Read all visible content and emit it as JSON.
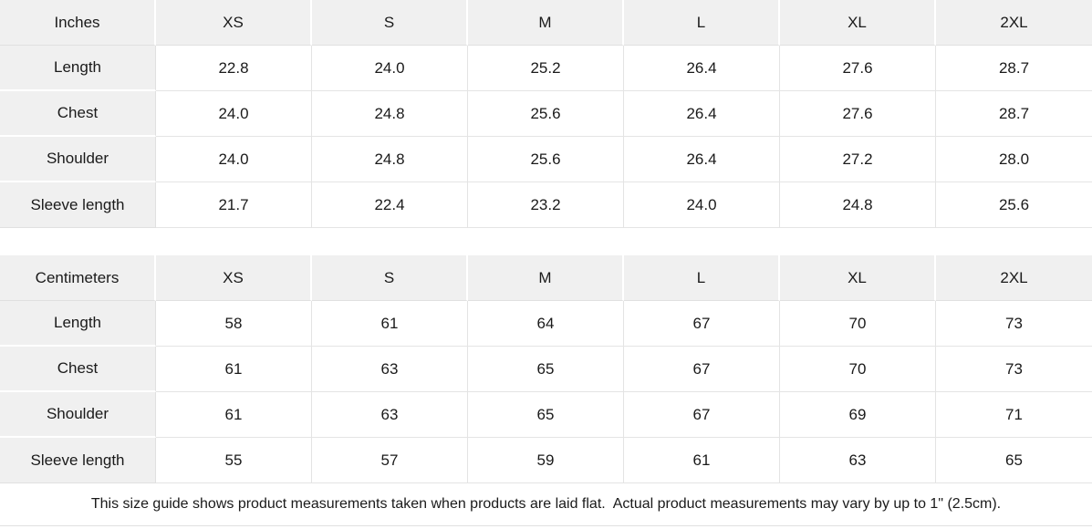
{
  "colors": {
    "cell_gray": "#f0f0f0",
    "grid_line": "#e0e0e0",
    "text": "#1a1a1a"
  },
  "tables": [
    {
      "unit_label": "Inches",
      "size_headers": [
        "XS",
        "S",
        "M",
        "L",
        "XL",
        "2XL"
      ],
      "rows": [
        {
          "label": "Length",
          "values": [
            "22.8",
            "24.0",
            "25.2",
            "26.4",
            "27.6",
            "28.7"
          ]
        },
        {
          "label": "Chest",
          "values": [
            "24.0",
            "24.8",
            "25.6",
            "26.4",
            "27.6",
            "28.7"
          ]
        },
        {
          "label": "Shoulder",
          "values": [
            "24.0",
            "24.8",
            "25.6",
            "26.4",
            "27.2",
            "28.0"
          ]
        },
        {
          "label": "Sleeve length",
          "values": [
            "21.7",
            "22.4",
            "23.2",
            "24.0",
            "24.8",
            "25.6"
          ]
        }
      ]
    },
    {
      "unit_label": "Centimeters",
      "size_headers": [
        "XS",
        "S",
        "M",
        "L",
        "XL",
        "2XL"
      ],
      "rows": [
        {
          "label": "Length",
          "values": [
            "58",
            "61",
            "64",
            "67",
            "70",
            "73"
          ]
        },
        {
          "label": "Chest",
          "values": [
            "61",
            "63",
            "65",
            "67",
            "70",
            "73"
          ]
        },
        {
          "label": "Shoulder",
          "values": [
            "61",
            "63",
            "65",
            "67",
            "69",
            "71"
          ]
        },
        {
          "label": "Sleeve length",
          "values": [
            "55",
            "57",
            "59",
            "61",
            "63",
            "65"
          ]
        }
      ]
    }
  ],
  "footer": {
    "note": "This size guide shows product measurements taken when products are laid flat.  Actual product measurements may vary by up to 1\" (2.5cm)."
  }
}
